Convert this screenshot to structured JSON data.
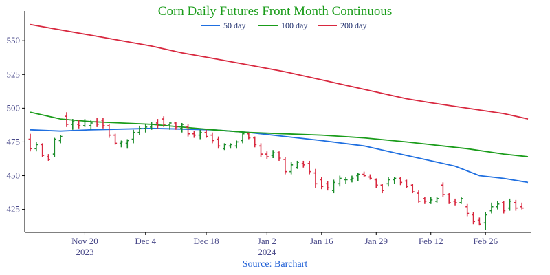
{
  "chart_data": {
    "type": "bar",
    "subtype": "ohlc",
    "title": "Corn Daily Futures Front Month Continuous",
    "source": "Source: Barchart",
    "colors": {
      "title": "#1a9c1a",
      "source": "#1f5fd6",
      "up": "#1a8c2a",
      "down": "#d8283f",
      "ma50": "#1f6fe0",
      "ma100": "#1a9c1a",
      "ma200": "#d8283f",
      "axis": "#000000"
    },
    "legend": {
      "placement": "top",
      "items": [
        {
          "label": "50 day",
          "color": "#1f6fe0"
        },
        {
          "label": "100 day",
          "color": "#1a9c1a"
        },
        {
          "label": "200 day",
          "color": "#d8283f"
        }
      ]
    },
    "y_axis": {
      "range": [
        408,
        572
      ],
      "ticks": [
        425,
        450,
        475,
        500,
        525,
        550
      ]
    },
    "x_axis": {
      "range": [
        0,
        82
      ],
      "ticks": [
        {
          "day": 9,
          "label": "Nov 20",
          "sub": "2023"
        },
        {
          "day": 19,
          "label": "Dec 4",
          "sub": ""
        },
        {
          "day": 29,
          "label": "Dec 18",
          "sub": ""
        },
        {
          "day": 39,
          "label": "Jan 2",
          "sub": "2024"
        },
        {
          "day": 48,
          "label": "Jan 16",
          "sub": ""
        },
        {
          "day": 57,
          "label": "Jan 29",
          "sub": ""
        },
        {
          "day": 66,
          "label": "Feb 12",
          "sub": ""
        },
        {
          "day": 75,
          "label": "Feb 26",
          "sub": ""
        }
      ]
    },
    "series": [
      {
        "name": "50 day",
        "points": [
          [
            0,
            484
          ],
          [
            5,
            483
          ],
          [
            10,
            484
          ],
          [
            20,
            485
          ],
          [
            30,
            484
          ],
          [
            36,
            482
          ],
          [
            42,
            479
          ],
          [
            48,
            476
          ],
          [
            55,
            472
          ],
          [
            60,
            467
          ],
          [
            66,
            461
          ],
          [
            70,
            457
          ],
          [
            74,
            450
          ],
          [
            78,
            448
          ],
          [
            82,
            445
          ]
        ]
      },
      {
        "name": "100 day",
        "points": [
          [
            0,
            497
          ],
          [
            5,
            492
          ],
          [
            10,
            490
          ],
          [
            20,
            488
          ],
          [
            30,
            484
          ],
          [
            36,
            482
          ],
          [
            42,
            481
          ],
          [
            48,
            480
          ],
          [
            55,
            478
          ],
          [
            62,
            475
          ],
          [
            66,
            473
          ],
          [
            72,
            470
          ],
          [
            78,
            466
          ],
          [
            82,
            464
          ]
        ]
      },
      {
        "name": "200 day",
        "points": [
          [
            0,
            562
          ],
          [
            10,
            554
          ],
          [
            20,
            546
          ],
          [
            25,
            541
          ],
          [
            30,
            537
          ],
          [
            36,
            532
          ],
          [
            42,
            527
          ],
          [
            48,
            521
          ],
          [
            55,
            514
          ],
          [
            62,
            507
          ],
          [
            66,
            504
          ],
          [
            72,
            500
          ],
          [
            78,
            496
          ],
          [
            82,
            492
          ]
        ]
      }
    ],
    "ohlc": [
      [
        0,
        477,
        481,
        468,
        470
      ],
      [
        1,
        470,
        475,
        468,
        473
      ],
      [
        2,
        473,
        474,
        464,
        465
      ],
      [
        3,
        464,
        466,
        461,
        462
      ],
      [
        4,
        466,
        478,
        464,
        477
      ],
      [
        5,
        476,
        480,
        474,
        479
      ],
      [
        6,
        494,
        497,
        486,
        488
      ],
      [
        7,
        488,
        492,
        484,
        490
      ],
      [
        8,
        488,
        491,
        485,
        487
      ],
      [
        9,
        487,
        492,
        486,
        490
      ],
      [
        10,
        487,
        491,
        484,
        489
      ],
      [
        11,
        490,
        493,
        486,
        488
      ],
      [
        12,
        491,
        493,
        485,
        487
      ],
      [
        13,
        487,
        488,
        478,
        480
      ],
      [
        14,
        480,
        481,
        473,
        474
      ],
      [
        15,
        474,
        476,
        471,
        475
      ],
      [
        16,
        474,
        477,
        470,
        476
      ],
      [
        17,
        477,
        484,
        474,
        482
      ],
      [
        18,
        482,
        487,
        480,
        485
      ],
      [
        19,
        485,
        488,
        482,
        486
      ],
      [
        20,
        486,
        490,
        484,
        488
      ],
      [
        21,
        489,
        492,
        485,
        487
      ],
      [
        22,
        492,
        494,
        486,
        488
      ],
      [
        23,
        488,
        490,
        484,
        489
      ],
      [
        24,
        489,
        490,
        484,
        486
      ],
      [
        25,
        485,
        489,
        482,
        488
      ],
      [
        26,
        486,
        488,
        479,
        481
      ],
      [
        27,
        481,
        483,
        478,
        480
      ],
      [
        28,
        480,
        484,
        477,
        482
      ],
      [
        29,
        482,
        484,
        478,
        479
      ],
      [
        30,
        480,
        482,
        474,
        476
      ],
      [
        31,
        477,
        479,
        470,
        472
      ],
      [
        32,
        470,
        474,
        469,
        473
      ],
      [
        33,
        472,
        474,
        470,
        473
      ],
      [
        34,
        472,
        476,
        470,
        475
      ],
      [
        35,
        476,
        482,
        474,
        481
      ],
      [
        36,
        481,
        482,
        477,
        478
      ],
      [
        37,
        478,
        479,
        471,
        473
      ],
      [
        38,
        472,
        474,
        464,
        466
      ],
      [
        39,
        466,
        468,
        462,
        464
      ],
      [
        40,
        465,
        469,
        463,
        467
      ],
      [
        41,
        467,
        468,
        461,
        463
      ],
      [
        42,
        462,
        464,
        451,
        453
      ],
      [
        43,
        453,
        460,
        451,
        458
      ],
      [
        44,
        456,
        461,
        455,
        460
      ],
      [
        45,
        459,
        461,
        456,
        458
      ],
      [
        46,
        459,
        461,
        451,
        453
      ],
      [
        47,
        452,
        455,
        441,
        444
      ],
      [
        48,
        447,
        449,
        440,
        442
      ],
      [
        49,
        444,
        446,
        439,
        441
      ],
      [
        50,
        439,
        447,
        437,
        445
      ],
      [
        51,
        444,
        450,
        442,
        448
      ],
      [
        52,
        447,
        449,
        444,
        447
      ],
      [
        53,
        447,
        450,
        445,
        448
      ],
      [
        54,
        450,
        452,
        446,
        451
      ],
      [
        55,
        451,
        453,
        449,
        450
      ],
      [
        56,
        449,
        451,
        447,
        448
      ],
      [
        57,
        447,
        448,
        441,
        443
      ],
      [
        58,
        443,
        444,
        437,
        439
      ],
      [
        59,
        444,
        449,
        442,
        447
      ],
      [
        60,
        447,
        449,
        444,
        448
      ],
      [
        61,
        448,
        449,
        443,
        445
      ],
      [
        62,
        446,
        447,
        441,
        442
      ],
      [
        63,
        443,
        444,
        437,
        438
      ],
      [
        64,
        437,
        439,
        430,
        431
      ],
      [
        65,
        433,
        434,
        429,
        431
      ],
      [
        66,
        430,
        434,
        429,
        432
      ],
      [
        67,
        431,
        434,
        430,
        433
      ],
      [
        68,
        443,
        445,
        434,
        436
      ],
      [
        69,
        436,
        437,
        429,
        430
      ],
      [
        70,
        431,
        433,
        428,
        430
      ],
      [
        71,
        430,
        434,
        429,
        433
      ],
      [
        72,
        427,
        429,
        420,
        422
      ],
      [
        73,
        421,
        423,
        414,
        416
      ],
      [
        74,
        417,
        419,
        413,
        414
      ],
      [
        75,
        415,
        423,
        410,
        421
      ],
      [
        76,
        424,
        430,
        422,
        427
      ],
      [
        77,
        427,
        431,
        425,
        429
      ],
      [
        78,
        430,
        431,
        422,
        424
      ],
      [
        79,
        426,
        433,
        424,
        431
      ],
      [
        80,
        430,
        432,
        424,
        426
      ],
      [
        81,
        427,
        430,
        425,
        426
      ]
    ]
  }
}
